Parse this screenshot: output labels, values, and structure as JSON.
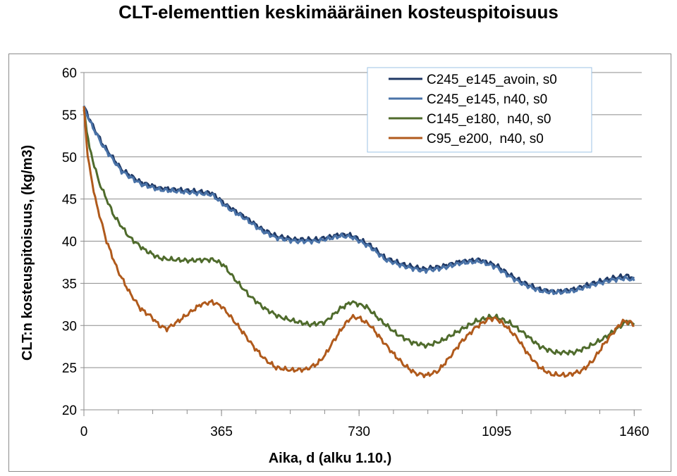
{
  "chart_data": {
    "type": "line",
    "title": "CLT-elementtien keskimääräinen kosteuspitoisuus",
    "xlabel": "Aika, d (alku 1.10.)",
    "ylabel": "CLT:n kosteuspitoisuus, (kg/m3)",
    "xlim": [
      0,
      1480
    ],
    "ylim": [
      20,
      60
    ],
    "xticks": [
      0,
      365,
      730,
      1095,
      1460
    ],
    "yticks": [
      20,
      25,
      30,
      35,
      40,
      45,
      50,
      55,
      60
    ],
    "grid": "horizontal",
    "legend_position": "top-right",
    "series": [
      {
        "name": "C245_e145_avoin, s0",
        "color": "#1f3864",
        "points": [
          [
            0,
            56
          ],
          [
            20,
            54
          ],
          [
            50,
            51.5
          ],
          [
            100,
            48.5
          ],
          [
            150,
            47
          ],
          [
            200,
            46.3
          ],
          [
            250,
            46.1
          ],
          [
            300,
            45.9
          ],
          [
            340,
            45.7
          ],
          [
            380,
            44.2
          ],
          [
            430,
            42.8
          ],
          [
            470,
            41.5
          ],
          [
            510,
            40.6
          ],
          [
            560,
            40.2
          ],
          [
            620,
            40.2
          ],
          [
            680,
            40.8
          ],
          [
            710,
            40.7
          ],
          [
            760,
            39.5
          ],
          [
            800,
            38
          ],
          [
            850,
            37.2
          ],
          [
            900,
            36.7
          ],
          [
            950,
            37
          ],
          [
            1000,
            37.6
          ],
          [
            1050,
            37.8
          ],
          [
            1095,
            37.1
          ],
          [
            1130,
            36
          ],
          [
            1170,
            35
          ],
          [
            1210,
            34.3
          ],
          [
            1250,
            34
          ],
          [
            1300,
            34.3
          ],
          [
            1350,
            35
          ],
          [
            1400,
            35.6
          ],
          [
            1440,
            35.9
          ],
          [
            1460,
            35.6
          ]
        ]
      },
      {
        "name": "C245_e145, n40, s0",
        "color": "#4a73a8",
        "points": [
          [
            0,
            55.8
          ],
          [
            20,
            53.8
          ],
          [
            50,
            51.3
          ],
          [
            100,
            48.3
          ],
          [
            150,
            46.8
          ],
          [
            200,
            46.1
          ],
          [
            250,
            45.9
          ],
          [
            300,
            45.7
          ],
          [
            340,
            45.5
          ],
          [
            380,
            44
          ],
          [
            430,
            42.6
          ],
          [
            470,
            41.3
          ],
          [
            510,
            40.4
          ],
          [
            560,
            40
          ],
          [
            620,
            40
          ],
          [
            680,
            40.6
          ],
          [
            710,
            40.5
          ],
          [
            760,
            39.3
          ],
          [
            800,
            37.8
          ],
          [
            850,
            37
          ],
          [
            900,
            36.5
          ],
          [
            950,
            36.8
          ],
          [
            1000,
            37.4
          ],
          [
            1050,
            37.6
          ],
          [
            1095,
            36.9
          ],
          [
            1130,
            35.8
          ],
          [
            1170,
            34.8
          ],
          [
            1210,
            34.1
          ],
          [
            1250,
            33.9
          ],
          [
            1300,
            34.1
          ],
          [
            1350,
            34.8
          ],
          [
            1400,
            35.4
          ],
          [
            1440,
            35.6
          ],
          [
            1460,
            35.3
          ]
        ]
      },
      {
        "name": "C145_e180,  n40, s0",
        "color": "#4f6b2c",
        "points": [
          [
            0,
            55.5
          ],
          [
            15,
            51
          ],
          [
            40,
            47
          ],
          [
            80,
            43
          ],
          [
            120,
            40.5
          ],
          [
            160,
            39
          ],
          [
            200,
            38
          ],
          [
            240,
            37.8
          ],
          [
            280,
            37.7
          ],
          [
            320,
            37.8
          ],
          [
            345,
            37.8
          ],
          [
            370,
            37.2
          ],
          [
            400,
            35.5
          ],
          [
            440,
            33.5
          ],
          [
            480,
            32
          ],
          [
            520,
            31
          ],
          [
            560,
            30.5
          ],
          [
            600,
            30.1
          ],
          [
            640,
            30.4
          ],
          [
            680,
            32
          ],
          [
            710,
            32.8
          ],
          [
            750,
            32.2
          ],
          [
            790,
            30.5
          ],
          [
            830,
            29
          ],
          [
            870,
            28
          ],
          [
            910,
            27.6
          ],
          [
            950,
            28.2
          ],
          [
            1000,
            29.5
          ],
          [
            1040,
            30.5
          ],
          [
            1075,
            31
          ],
          [
            1095,
            31
          ],
          [
            1130,
            30.3
          ],
          [
            1170,
            29
          ],
          [
            1210,
            27.5
          ],
          [
            1250,
            26.8
          ],
          [
            1300,
            26.8
          ],
          [
            1340,
            27.5
          ],
          [
            1380,
            28.5
          ],
          [
            1420,
            29.8
          ],
          [
            1440,
            30.5
          ],
          [
            1460,
            30.1
          ]
        ]
      },
      {
        "name": "C95_e200,  n40, s0",
        "color": "#b05a1c",
        "points": [
          [
            0,
            56
          ],
          [
            10,
            50
          ],
          [
            30,
            45
          ],
          [
            60,
            40
          ],
          [
            90,
            36.5
          ],
          [
            120,
            34
          ],
          [
            150,
            32
          ],
          [
            180,
            31
          ],
          [
            200,
            30
          ],
          [
            220,
            29.6
          ],
          [
            250,
            30.5
          ],
          [
            280,
            31.5
          ],
          [
            310,
            32.5
          ],
          [
            340,
            32.8
          ],
          [
            365,
            32.3
          ],
          [
            390,
            31
          ],
          [
            420,
            29.3
          ],
          [
            450,
            27.5
          ],
          [
            480,
            26
          ],
          [
            510,
            25
          ],
          [
            550,
            24.7
          ],
          [
            590,
            24.8
          ],
          [
            620,
            25.5
          ],
          [
            640,
            26.5
          ],
          [
            660,
            28
          ],
          [
            690,
            30
          ],
          [
            710,
            31
          ],
          [
            730,
            30.9
          ],
          [
            760,
            30
          ],
          [
            790,
            28.3
          ],
          [
            820,
            26.7
          ],
          [
            850,
            25.3
          ],
          [
            880,
            24.3
          ],
          [
            910,
            24.1
          ],
          [
            940,
            24.6
          ],
          [
            970,
            26.2
          ],
          [
            1000,
            28
          ],
          [
            1040,
            29.8
          ],
          [
            1075,
            30.8
          ],
          [
            1095,
            30.8
          ],
          [
            1120,
            29.9
          ],
          [
            1150,
            28.5
          ],
          [
            1180,
            26.5
          ],
          [
            1210,
            25
          ],
          [
            1240,
            24.2
          ],
          [
            1280,
            24.1
          ],
          [
            1320,
            24.6
          ],
          [
            1350,
            25.8
          ],
          [
            1380,
            27.8
          ],
          [
            1410,
            29.5
          ],
          [
            1430,
            30.5
          ],
          [
            1450,
            30.4
          ],
          [
            1460,
            30
          ]
        ]
      }
    ]
  }
}
